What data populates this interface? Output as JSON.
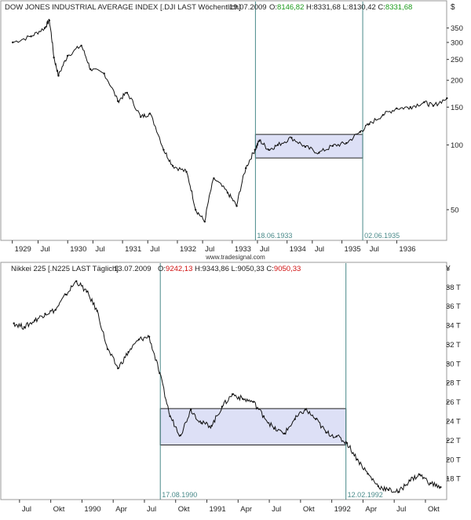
{
  "watermark": "www.tradesignal.com",
  "chart_data": [
    {
      "type": "line",
      "title": "DOW JONES INDUSTRIAL AVERAGE INDEX [.DJI LAST Wöchentlich]",
      "date": "19.07.2009",
      "ohlc": {
        "open": {
          "label": "O:",
          "value": "8146,82"
        },
        "high": {
          "label": "H:",
          "value": "8331,68"
        },
        "low": {
          "label": "L:",
          "value": "8130,42"
        },
        "close": {
          "label": "C:",
          "value": "8331,68"
        }
      },
      "ohlc_color": "#1a9a1a",
      "currency": "$",
      "yscale": "log",
      "ylim": [
        36,
        420
      ],
      "y_ticks": [
        50,
        100,
        150,
        200,
        250,
        300,
        350
      ],
      "x_labels": [
        "1929",
        "Jul",
        "1930",
        "Jul",
        "1931",
        "Jul",
        "1932",
        "Jul",
        "1933",
        "Jul",
        "1934",
        "Jul",
        "1935",
        "Jul",
        "1936"
      ],
      "x": [
        "1929-01",
        "1929-05",
        "1929-08",
        "1929-09",
        "1929-10",
        "1929-11",
        "1930-01",
        "1930-04",
        "1930-06",
        "1930-09",
        "1930-12",
        "1931-02",
        "1931-05",
        "1931-07",
        "1931-10",
        "1931-12",
        "1932-03",
        "1932-05",
        "1932-07",
        "1932-09",
        "1932-12",
        "1933-02",
        "1933-04",
        "1933-06",
        "1933-07",
        "1933-09",
        "1933-11",
        "1934-02",
        "1934-05",
        "1934-08",
        "1934-11",
        "1935-02",
        "1935-05",
        "1935-07",
        "1935-10",
        "1936-01",
        "1936-04",
        "1936-07",
        "1936-09",
        "1936-12"
      ],
      "values": [
        300,
        320,
        350,
        380,
        255,
        210,
        260,
        290,
        225,
        215,
        160,
        175,
        135,
        140,
        95,
        80,
        75,
        50,
        44,
        70,
        60,
        52,
        78,
        95,
        105,
        95,
        100,
        108,
        98,
        92,
        99,
        102,
        115,
        125,
        138,
        148,
        150,
        158,
        152,
        165
      ],
      "box": {
        "x_start": "1933-06-18",
        "x_end": "1935-06-02",
        "y_low": 87,
        "y_high": 112,
        "color": "#dde0f6"
      },
      "markers": [
        {
          "date": "1933-06-18",
          "label": "18.06.1933"
        },
        {
          "date": "1935-06-02",
          "label": "02.06.1935"
        }
      ],
      "marker_color": "#4a8a8a",
      "grid": false
    },
    {
      "type": "line",
      "title": "Nikkei 225 [.N225 LAST Täglich]",
      "date": "13.07.2009",
      "ohlc": {
        "open": {
          "label": "O:",
          "value": "9242,13"
        },
        "high": {
          "label": "H:",
          "value": "9343,86"
        },
        "low": {
          "label": "L:",
          "value": "9050,33"
        },
        "close": {
          "label": "C:",
          "value": "9050,33"
        }
      },
      "ohlc_color": "#d01010",
      "currency": "¥",
      "yscale": "linear",
      "ylim": [
        15800,
        39500
      ],
      "y_ticks": [
        18000,
        20000,
        22000,
        24000,
        26000,
        28000,
        30000,
        32000,
        34000,
        36000,
        38000
      ],
      "y_tick_labels": [
        "18 T",
        "20 T",
        "22 T",
        "24 T",
        "26 T",
        "28 T",
        "30 T",
        "32 T",
        "34 T",
        "36 T",
        "38 T"
      ],
      "x_labels": [
        "Jul",
        "Okt",
        "1990",
        "Apr",
        "Jul",
        "Okt",
        "1991",
        "Apr",
        "Jul",
        "Okt",
        "1992",
        "Apr",
        "Jul",
        "Okt"
      ],
      "x": [
        "1989-06",
        "1989-07",
        "1989-08",
        "1989-09",
        "1989-10",
        "1989-11",
        "1989-12",
        "1990-01",
        "1990-02",
        "1990-03",
        "1990-04",
        "1990-05",
        "1990-06",
        "1990-07",
        "1990-08",
        "1990-09",
        "1990-10",
        "1990-11",
        "1990-12",
        "1991-01",
        "1991-02",
        "1991-03",
        "1991-04",
        "1991-05",
        "1991-06",
        "1991-07",
        "1991-08",
        "1991-09",
        "1991-10",
        "1991-11",
        "1991-12",
        "1992-01",
        "1992-02",
        "1992-03",
        "1992-04",
        "1992-05",
        "1992-06",
        "1992-07",
        "1992-08",
        "1992-09",
        "1992-10",
        "1992-11"
      ],
      "values": [
        34200,
        33800,
        34500,
        35200,
        35600,
        37200,
        38600,
        37500,
        35500,
        31500,
        29500,
        31200,
        32500,
        32800,
        29000,
        24500,
        22500,
        25200,
        23800,
        23500,
        25500,
        26800,
        26300,
        26000,
        24500,
        23200,
        22700,
        24200,
        25200,
        24200,
        22800,
        22400,
        21700,
        20000,
        18500,
        17200,
        16800,
        16600,
        17800,
        18400,
        17500,
        17100
      ],
      "box": {
        "x_start": "1990-08-17",
        "x_end": "1992-02-12",
        "y_low": 21500,
        "y_high": 25300,
        "color": "#dde0f6"
      },
      "markers": [
        {
          "date": "1990-08-17",
          "label": "17.08.1990"
        },
        {
          "date": "1992-02-12",
          "label": "12.02.1992"
        }
      ],
      "marker_color": "#4a8a8a",
      "grid": false
    }
  ]
}
